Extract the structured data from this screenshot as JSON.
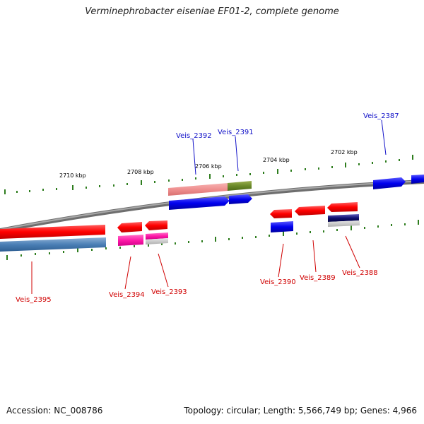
{
  "title": "Verminephrobacter eiseniae EF01-2, complete genome",
  "footer": {
    "accession": "Accession: NC_008786",
    "topology": "Topology: circular; Length: 5,566,749 bp; Genes: 4,966"
  },
  "colors": {
    "backbone": "#7a7a7a",
    "tick": "#2e7d1e",
    "label_red": "#d00000",
    "label_blue": "#1010c8"
  },
  "scale_labels": [
    "2710 kbp",
    "2708 kbp",
    "2706 kbp",
    "2704 kbp",
    "2702 kbp"
  ],
  "genes": [
    {
      "name": "Veis_2395",
      "color": "red"
    },
    {
      "name": "Veis_2394",
      "color": "red"
    },
    {
      "name": "Veis_2393",
      "color": "red"
    },
    {
      "name": "Veis_2392",
      "color": "blue"
    },
    {
      "name": "Veis_2391",
      "color": "blue"
    },
    {
      "name": "Veis_2390",
      "color": "red"
    },
    {
      "name": "Veis_2389",
      "color": "red"
    },
    {
      "name": "Veis_2388",
      "color": "red"
    },
    {
      "name": "Veis_2387",
      "color": "blue"
    }
  ]
}
